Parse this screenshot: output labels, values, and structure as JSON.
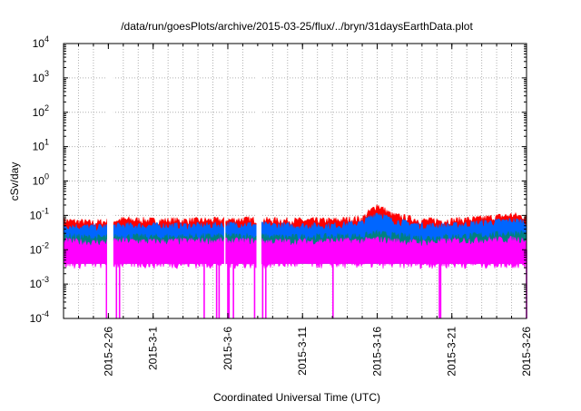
{
  "chart_data": {
    "type": "line",
    "title": "/data/run/goesPlots/archive/2015-03-25/flux/../bryn/31daysEarthData.plot",
    "xlabel": "Coordinated Universal Time (UTC)",
    "ylabel": "cSv/day",
    "yscale": "log",
    "ylim": [
      0.0001,
      10000
    ],
    "xlim": [
      "2015-02-23",
      "2015-03-26"
    ],
    "grid": true,
    "y_ticks": [
      {
        "base": "10",
        "exp": "-4",
        "value": 0.0001
      },
      {
        "base": "10",
        "exp": "-3",
        "value": 0.001
      },
      {
        "base": "10",
        "exp": "-2",
        "value": 0.01
      },
      {
        "base": "10",
        "exp": "-1",
        "value": 0.1
      },
      {
        "base": "10",
        "exp": "0",
        "value": 1
      },
      {
        "base": "10",
        "exp": "1",
        "value": 10
      },
      {
        "base": "10",
        "exp": "2",
        "value": 100
      },
      {
        "base": "10",
        "exp": "3",
        "value": 1000
      },
      {
        "base": "10",
        "exp": "4",
        "value": 10000
      }
    ],
    "x_ticks": [
      "2015-2-26",
      "2015-3-1",
      "2015-3-6",
      "2015-3-11",
      "2015-3-16",
      "2015-3-21",
      "2015-3-26"
    ],
    "x_tick_dates": [
      "2015-02-26",
      "2015-03-01",
      "2015-03-06",
      "2015-03-11",
      "2015-03-16",
      "2015-03-21",
      "2015-03-26"
    ],
    "series": [
      {
        "color": "#ff0000",
        "x": [
          "2015-02-23",
          "2015-02-25",
          "2015-02-27",
          "2015-03-01",
          "2015-03-04",
          "2015-03-07",
          "2015-03-10",
          "2015-03-13",
          "2015-03-15",
          "2015-03-16",
          "2015-03-17",
          "2015-03-19",
          "2015-03-21",
          "2015-03-23",
          "2015-03-25",
          "2015-03-26"
        ],
        "y": [
          0.07,
          0.06,
          0.075,
          0.07,
          0.07,
          0.075,
          0.07,
          0.07,
          0.08,
          0.2,
          0.1,
          0.07,
          0.07,
          0.08,
          0.1,
          0.09
        ]
      },
      {
        "color": "#0066ff",
        "x": [
          "2015-02-23",
          "2015-02-25",
          "2015-02-27",
          "2015-03-01",
          "2015-03-04",
          "2015-03-07",
          "2015-03-10",
          "2015-03-13",
          "2015-03-15",
          "2015-03-16",
          "2015-03-17",
          "2015-03-19",
          "2015-03-21",
          "2015-03-23",
          "2015-03-25",
          "2015-03-26"
        ],
        "y": [
          0.05,
          0.045,
          0.05,
          0.05,
          0.05,
          0.055,
          0.05,
          0.05,
          0.06,
          0.12,
          0.07,
          0.05,
          0.05,
          0.06,
          0.07,
          0.065
        ]
      },
      {
        "color": "#008080",
        "x": [
          "2015-02-23",
          "2015-02-25",
          "2015-02-27",
          "2015-03-01",
          "2015-03-04",
          "2015-03-07",
          "2015-03-10",
          "2015-03-13",
          "2015-03-15",
          "2015-03-16",
          "2015-03-17",
          "2015-03-19",
          "2015-03-21",
          "2015-03-23",
          "2015-03-25",
          "2015-03-26"
        ],
        "y": [
          0.025,
          0.022,
          0.024,
          0.023,
          0.024,
          0.025,
          0.023,
          0.024,
          0.025,
          0.03,
          0.026,
          0.022,
          0.024,
          0.026,
          0.03,
          0.03
        ]
      },
      {
        "color": "#ff00ff",
        "x": [
          "2015-02-23",
          "2015-02-25",
          "2015-02-27",
          "2015-03-01",
          "2015-03-04",
          "2015-03-07",
          "2015-03-10",
          "2015-03-13",
          "2015-03-15",
          "2015-03-16",
          "2015-03-17",
          "2015-03-19",
          "2015-03-21",
          "2015-03-23",
          "2015-03-25",
          "2015-03-26"
        ],
        "y": [
          0.018,
          0.016,
          0.018,
          0.017,
          0.018,
          0.018,
          0.017,
          0.018,
          0.018,
          0.02,
          0.018,
          0.016,
          0.018,
          0.019,
          0.02,
          0.02
        ]
      }
    ],
    "band_floor": 0.004,
    "gaps": [
      {
        "start": "2015-02-25T22:00",
        "end": "2015-02-26T08:00"
      },
      {
        "start": "2015-03-05T18:00",
        "end": "2015-03-05T20:00"
      },
      {
        "start": "2015-03-07T22:00",
        "end": "2015-03-08T06:00"
      }
    ],
    "dropouts": [
      "2015-02-25T21:00",
      "2015-02-26T13:00",
      "2015-02-26T18:00",
      "2015-03-04T10:00",
      "2015-03-05T06:00",
      "2015-03-05T10:00",
      "2015-03-06T00:00",
      "2015-03-06T02:00",
      "2015-03-06T09:00",
      "2015-03-07T19:00",
      "2015-03-08T08:00",
      "2015-03-08T13:00",
      "2015-03-13T01:00",
      "2015-03-20T04:00",
      "2015-03-20T06:00",
      "2015-03-26T00:00"
    ]
  }
}
